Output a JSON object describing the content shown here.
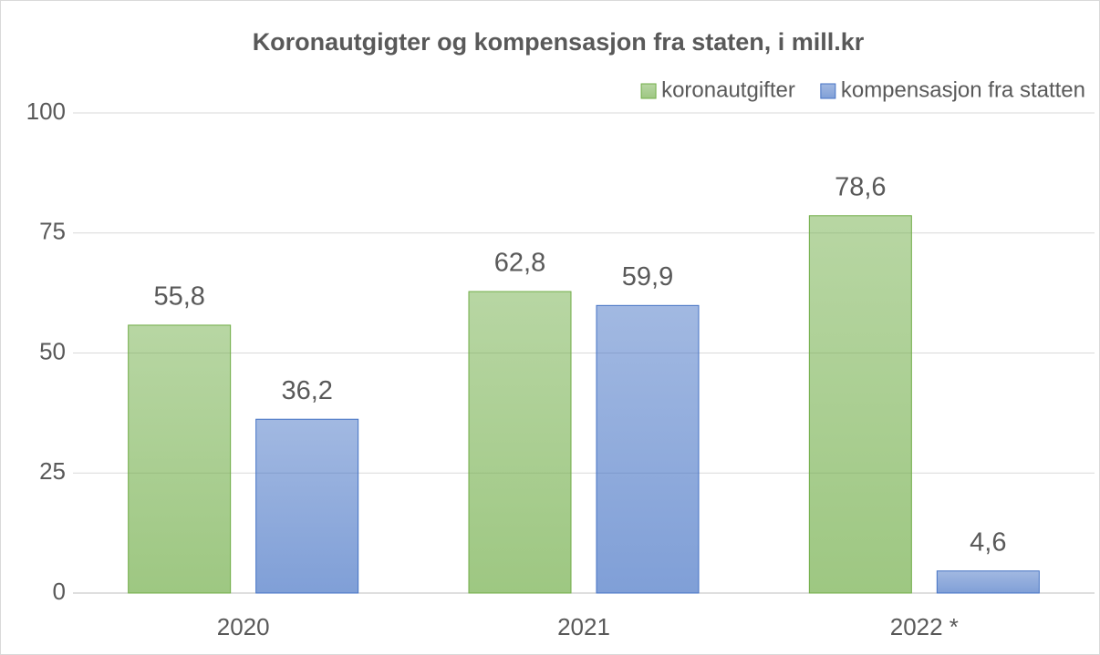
{
  "chart_data": {
    "type": "bar",
    "title": "Koronautgigter og kompensasjon fra staten, i mill.kr",
    "categories": [
      "2020",
      "2021",
      "2022 *"
    ],
    "series": [
      {
        "name": "koronautgifter",
        "color": "#70ad47",
        "values": [
          55.8,
          62.8,
          78.6
        ],
        "value_labels": [
          "55,8",
          "62,8",
          "78,6"
        ]
      },
      {
        "name": "kompensasjon fra statten",
        "color": "#4472c4",
        "values": [
          36.2,
          59.9,
          4.6
        ],
        "value_labels": [
          "36,2",
          "59,9",
          "4,6"
        ]
      }
    ],
    "ylim": [
      0,
      100
    ],
    "yticks": [
      0,
      25,
      50,
      75,
      100
    ],
    "grid": true,
    "legend": "top-right"
  }
}
